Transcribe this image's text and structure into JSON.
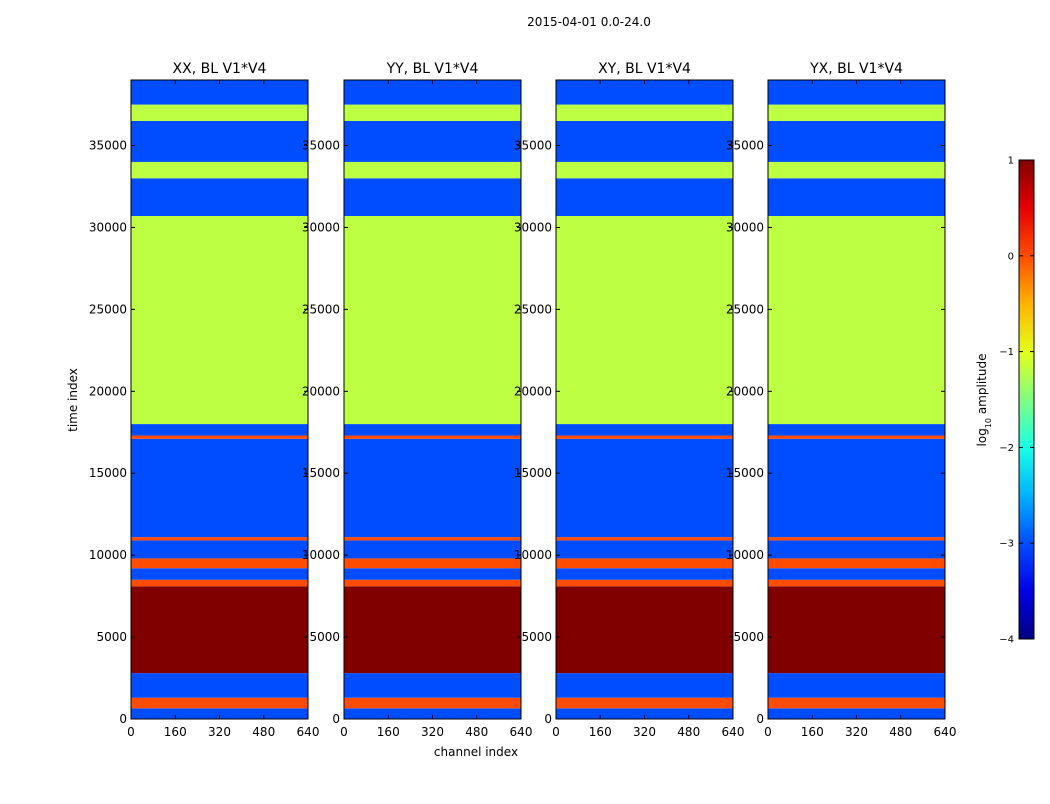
{
  "figure": {
    "suptitle": "2015-04-01 0.0-24.0"
  },
  "chart_data": {
    "type": "heatmap",
    "title": "2015-04-01 0.0-24.0",
    "xlabel": "channel index",
    "ylabel": "time index",
    "xlim": [
      0,
      640
    ],
    "ylim": [
      0,
      39000
    ],
    "xticks": [
      0,
      160,
      320,
      480,
      640
    ],
    "yticks": [
      0,
      5000,
      10000,
      15000,
      20000,
      25000,
      30000,
      35000
    ],
    "panels": [
      {
        "title": "XX, BL V1*V4"
      },
      {
        "title": "YY, BL V1*V4"
      },
      {
        "title": "XY, BL V1*V4"
      },
      {
        "title": "YX, BL V1*V4"
      }
    ],
    "time_bands": [
      {
        "from": 0,
        "to": 650,
        "level": -3.0
      },
      {
        "from": 650,
        "to": 1300,
        "level": 0.0
      },
      {
        "from": 1300,
        "to": 2800,
        "level": -3.0
      },
      {
        "from": 2800,
        "to": 8100,
        "level": 1.0
      },
      {
        "from": 8100,
        "to": 8500,
        "level": 0.0
      },
      {
        "from": 8500,
        "to": 9200,
        "level": -3.0
      },
      {
        "from": 9200,
        "to": 9800,
        "level": 0.0
      },
      {
        "from": 9800,
        "to": 10900,
        "level": -3.0
      },
      {
        "from": 10900,
        "to": 11100,
        "level": 0.0
      },
      {
        "from": 11100,
        "to": 17100,
        "level": -3.0
      },
      {
        "from": 17100,
        "to": 17300,
        "level": 0.0
      },
      {
        "from": 17300,
        "to": 18000,
        "level": -3.0
      },
      {
        "from": 18000,
        "to": 30700,
        "level": -1.2
      },
      {
        "from": 30700,
        "to": 33000,
        "level": -3.0
      },
      {
        "from": 33000,
        "to": 34000,
        "level": -1.2
      },
      {
        "from": 34000,
        "to": 36500,
        "level": -3.0
      },
      {
        "from": 36500,
        "to": 37500,
        "level": -1.2
      },
      {
        "from": 37500,
        "to": 39000,
        "level": -3.0
      }
    ],
    "colorbar": {
      "label": "log10 amplitude",
      "label_text": "log",
      "label_sub": "10",
      "label_suffix": " amplitude",
      "range": [
        -4,
        1
      ],
      "ticks": [
        1,
        0,
        -1,
        -2,
        -3,
        -4
      ],
      "tick_labels": [
        "1",
        "0",
        "−1",
        "−2",
        "−3",
        "−4"
      ],
      "colormap": "jet"
    }
  }
}
